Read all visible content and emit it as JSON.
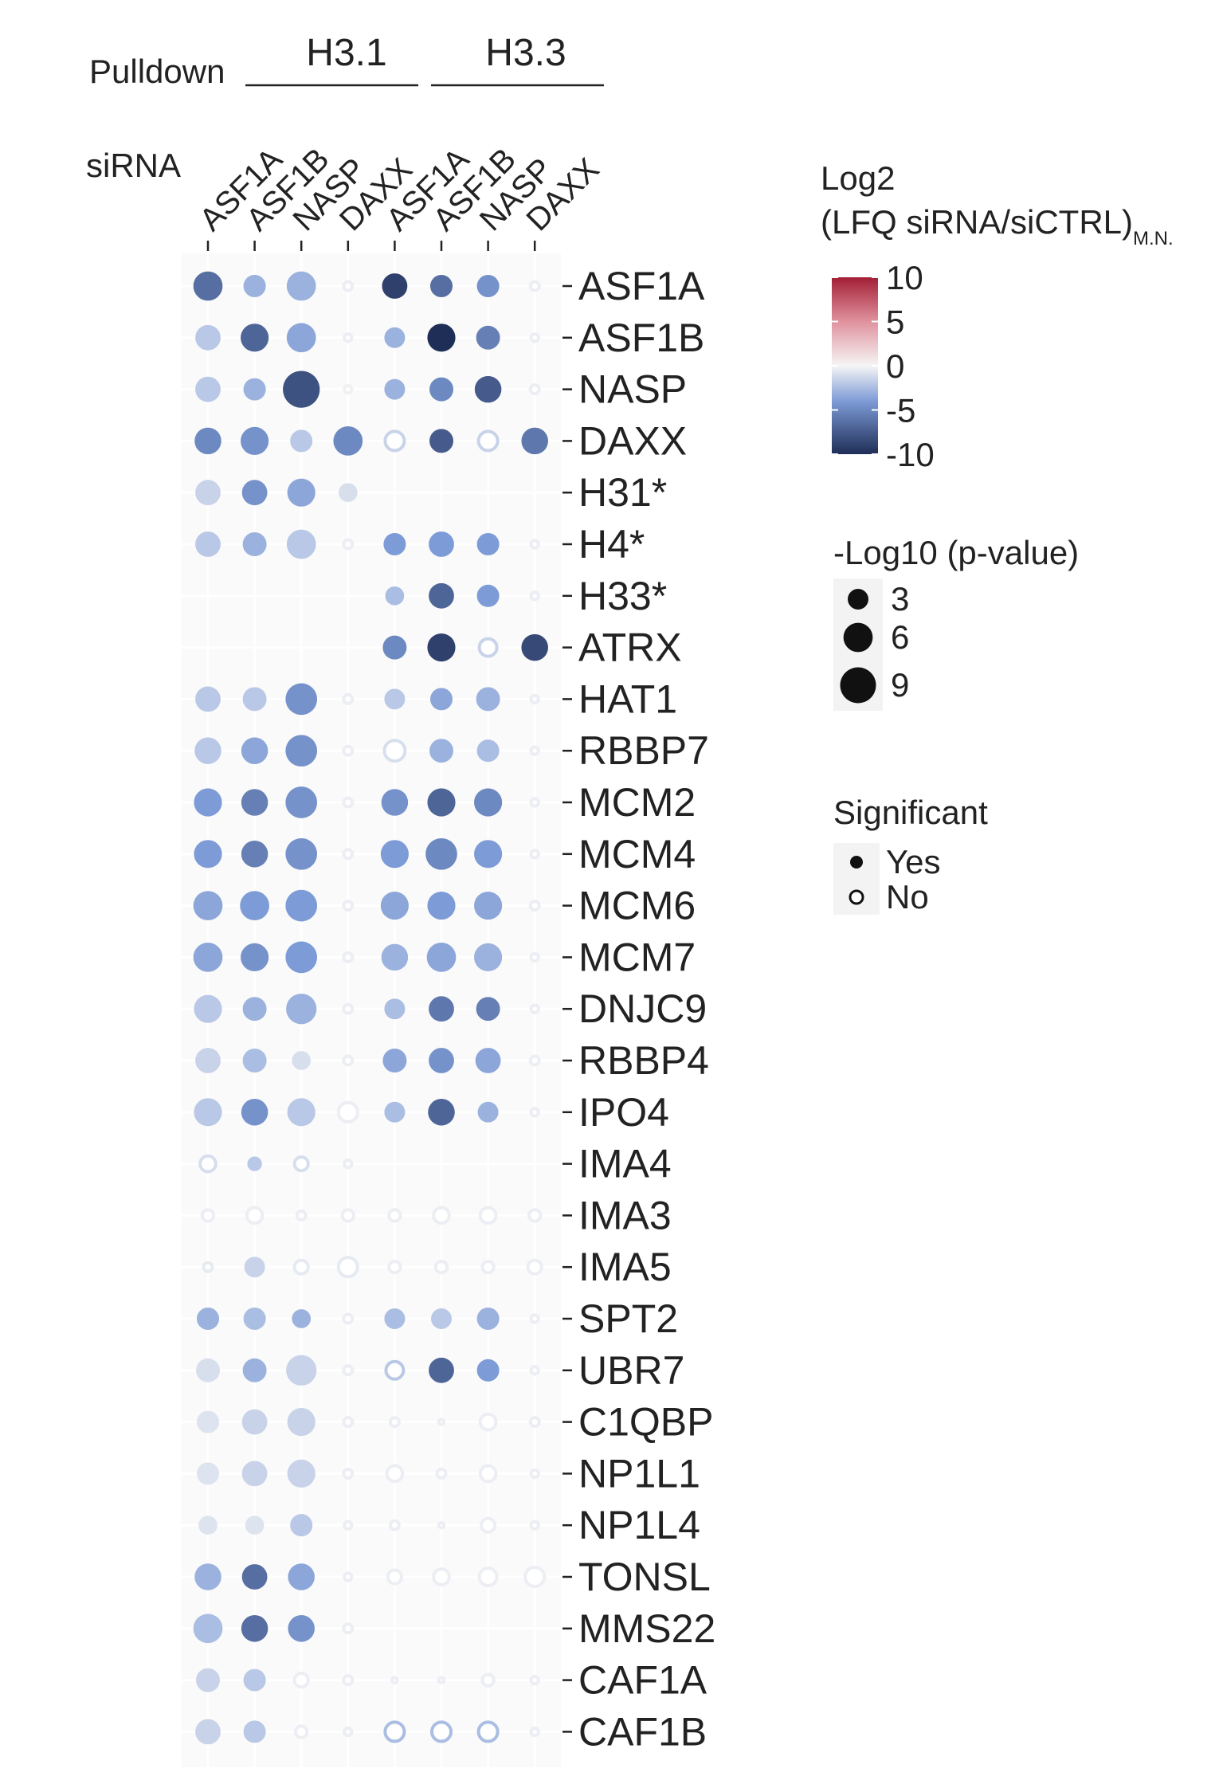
{
  "chart_data": {
    "type": "dotplot",
    "pulldown_label": "Pulldown",
    "sirna_label": "siRNA",
    "pulldown_groups": [
      {
        "name": "H3.1",
        "columns": [
          "ASF1A",
          "ASF1B",
          "NASP",
          "DAXX"
        ]
      },
      {
        "name": "H3.3",
        "columns": [
          "ASF1A",
          "ASF1B",
          "NASP",
          "DAXX"
        ]
      }
    ],
    "columns": [
      "ASF1A",
      "ASF1B",
      "NASP",
      "DAXX",
      "ASF1A",
      "ASF1B",
      "NASP",
      "DAXX"
    ],
    "rows": [
      "ASF1A",
      "ASF1B",
      "NASP",
      "DAXX",
      "H31*",
      "H4*",
      "H33*",
      "ATRX",
      "HAT1",
      "RBBP7",
      "MCM2",
      "MCM4",
      "MCM6",
      "MCM7",
      "DNJC9",
      "RBBP4",
      "IPO4",
      "IMA4",
      "IMA3",
      "IMA5",
      "SPT2",
      "UBR7",
      "C1QBP",
      "NP1L1",
      "NP1L4",
      "TONSL",
      "MMS22",
      "CAF1A",
      "CAF1B"
    ],
    "log2_ratio": [
      [
        -6.5,
        -3,
        -3,
        -0.3,
        -9,
        -6.5,
        -4.5,
        -0.3
      ],
      [
        -2,
        -7,
        -3.5,
        -0.3,
        -3,
        -10,
        -5.5,
        -0.3
      ],
      [
        -2,
        -3,
        -8,
        -0.2,
        -3,
        -5,
        -7.5,
        -0.3
      ],
      [
        -5,
        -4.5,
        -2,
        -5,
        -1.5,
        -7.5,
        -1.5,
        -6
      ],
      [
        -1.5,
        -4.5,
        -3.5,
        -1,
        null,
        null,
        null,
        null
      ],
      [
        -2,
        -3,
        -2,
        -0.3,
        -4,
        -4,
        -4,
        -0.3
      ],
      [
        null,
        null,
        null,
        null,
        -2.5,
        -7,
        -4,
        -0.3
      ],
      [
        null,
        null,
        null,
        null,
        -5,
        -9,
        -1.5,
        -8.5
      ],
      [
        -2,
        -2,
        -4.5,
        -0.3,
        -2,
        -3.5,
        -3,
        -0.3
      ],
      [
        -2,
        -3.5,
        -4.5,
        -0.3,
        -1,
        -3,
        -2.5,
        -0.3
      ],
      [
        -4,
        -5.5,
        -4.5,
        -0.3,
        -4.5,
        -7,
        -5,
        -0.3
      ],
      [
        -4,
        -5.5,
        -4.5,
        -0.3,
        -4,
        -5,
        -4,
        -0.3
      ],
      [
        -3.5,
        -4,
        -4,
        -0.3,
        -3.5,
        -4,
        -3.5,
        -0.3
      ],
      [
        -3.5,
        -4.5,
        -4,
        -0.3,
        -3,
        -3.5,
        -3,
        -0.3
      ],
      [
        -2,
        -3,
        -3,
        -0.3,
        -2.5,
        -6,
        -5.5,
        -0.3
      ],
      [
        -1.5,
        -2.5,
        -1,
        -0.3,
        -3.5,
        -4.5,
        -3.5,
        -0.3
      ],
      [
        -2,
        -4.5,
        -2,
        -0.3,
        -2.5,
        -7,
        -3,
        -0.3
      ],
      [
        -1,
        -2,
        -1,
        -0.3,
        null,
        null,
        null,
        null
      ],
      [
        -0.3,
        -0.3,
        -0.3,
        -0.3,
        -0.3,
        -0.3,
        -0.3,
        -0.3
      ],
      [
        -0.5,
        -1.5,
        -0.5,
        -0.5,
        -0.3,
        -0.3,
        -0.3,
        -0.3
      ],
      [
        -3,
        -2.5,
        -3,
        -0.3,
        -2.5,
        -2,
        -3,
        -0.3
      ],
      [
        -1,
        -3,
        -1.5,
        -0.3,
        -2,
        -7,
        -4,
        -0.3
      ],
      [
        -0.8,
        -1.5,
        -1.5,
        -0.3,
        -0.3,
        -0.3,
        -0.3,
        -0.3
      ],
      [
        -0.8,
        -1.5,
        -1.5,
        -0.3,
        -0.3,
        -0.3,
        -0.3,
        -0.3
      ],
      [
        -0.8,
        -0.8,
        -2,
        -0.3,
        -0.3,
        -0.3,
        -0.3,
        -0.3
      ],
      [
        -3,
        -6.5,
        -3.5,
        -0.3,
        -0.3,
        -0.3,
        -0.3,
        -0.3
      ],
      [
        -2.5,
        -6.5,
        -4.5,
        -0.3,
        null,
        null,
        null,
        null
      ],
      [
        -1.5,
        -2,
        -0.3,
        -0.3,
        -0.3,
        -0.3,
        -0.3,
        -0.3
      ],
      [
        -1.5,
        -2,
        -0.3,
        -0.3,
        -2.5,
        -2.5,
        -2.5,
        -0.3
      ]
    ],
    "neg_log10_pvalue": [
      [
        6,
        3.5,
        6,
        1,
        4.5,
        3.5,
        3.5,
        1
      ],
      [
        4.5,
        5.5,
        6,
        0.8,
        3,
        5.5,
        4,
        0.8
      ],
      [
        4.5,
        3.5,
        9.5,
        0.8,
        3,
        4,
        5,
        1
      ],
      [
        5,
        5.5,
        3.5,
        6,
        3.5,
        4,
        3.5,
        5
      ],
      [
        4.5,
        4.5,
        5.5,
        2.5,
        null,
        null,
        null,
        null
      ],
      [
        4.5,
        4,
        6,
        1,
        3.5,
        4.5,
        3.5,
        0.8
      ],
      [
        null,
        null,
        null,
        null,
        2.5,
        4.5,
        3.5,
        0.8
      ],
      [
        null,
        null,
        null,
        null,
        4,
        5.5,
        3,
        5
      ],
      [
        4.5,
        4,
        7,
        1,
        3,
        3.5,
        4,
        0.8
      ],
      [
        5,
        5,
        7,
        1,
        4,
        4,
        3.5,
        0.8
      ],
      [
        5.5,
        5,
        7,
        1,
        5,
        5.5,
        5.5,
        0.8
      ],
      [
        5.5,
        5,
        7,
        1,
        5.5,
        7,
        5.5,
        0.8
      ],
      [
        6,
        6,
        7,
        1,
        5.5,
        5.5,
        5.5,
        1
      ],
      [
        6,
        5.5,
        7,
        1,
        5,
        6,
        5.5,
        0.8
      ],
      [
        5.5,
        4,
        6.5,
        1,
        3,
        4.5,
        4,
        0.8
      ],
      [
        4.5,
        4,
        2.5,
        1,
        4,
        4.5,
        4.5,
        1
      ],
      [
        5.5,
        5,
        5.5,
        3.5,
        3,
        5,
        3,
        0.8
      ],
      [
        2.5,
        1.5,
        2,
        0.8,
        null,
        null,
        null,
        null
      ],
      [
        1.5,
        2.5,
        1,
        1.5,
        1.5,
        2.5,
        2.5,
        1.5
      ],
      [
        1,
        3,
        2,
        3.5,
        1.5,
        1.5,
        1.5,
        2
      ],
      [
        3.5,
        3.5,
        2.5,
        1,
        3,
        3,
        3.5,
        0.8
      ],
      [
        4,
        4,
        6.5,
        1,
        3,
        4.5,
        3.5,
        0.8
      ],
      [
        3.5,
        4.5,
        5.5,
        1,
        1,
        0.5,
        2.5,
        1
      ],
      [
        3.5,
        4.5,
        5.5,
        1,
        2.5,
        1,
        2.5,
        0.8
      ],
      [
        2.5,
        2.5,
        3.5,
        0.8,
        1,
        0.5,
        2,
        0.8
      ],
      [
        5,
        4.5,
        5,
        0.8,
        2,
        2.5,
        3,
        3.5
      ],
      [
        6,
        5,
        5,
        1,
        null,
        null,
        null,
        null
      ],
      [
        4,
        3.5,
        2,
        1,
        0.5,
        0.5,
        1.5,
        0.8
      ],
      [
        4.5,
        3.5,
        1.5,
        0.8,
        3.5,
        3.5,
        3.5,
        0.8
      ]
    ],
    "significant": [
      [
        true,
        true,
        true,
        false,
        true,
        true,
        true,
        false
      ],
      [
        true,
        true,
        true,
        false,
        true,
        true,
        true,
        false
      ],
      [
        true,
        true,
        true,
        false,
        true,
        true,
        true,
        false
      ],
      [
        true,
        true,
        true,
        true,
        false,
        true,
        false,
        true
      ],
      [
        true,
        true,
        true,
        true,
        null,
        null,
        null,
        null
      ],
      [
        true,
        true,
        true,
        false,
        true,
        true,
        true,
        false
      ],
      [
        null,
        null,
        null,
        null,
        true,
        true,
        true,
        false
      ],
      [
        null,
        null,
        null,
        null,
        true,
        true,
        false,
        true
      ],
      [
        true,
        true,
        true,
        false,
        true,
        true,
        true,
        false
      ],
      [
        true,
        true,
        true,
        false,
        false,
        true,
        true,
        false
      ],
      [
        true,
        true,
        true,
        false,
        true,
        true,
        true,
        false
      ],
      [
        true,
        true,
        true,
        false,
        true,
        true,
        true,
        false
      ],
      [
        true,
        true,
        true,
        false,
        true,
        true,
        true,
        false
      ],
      [
        true,
        true,
        true,
        false,
        true,
        true,
        true,
        false
      ],
      [
        true,
        true,
        true,
        false,
        true,
        true,
        true,
        false
      ],
      [
        true,
        true,
        true,
        false,
        true,
        true,
        true,
        false
      ],
      [
        true,
        true,
        true,
        false,
        true,
        true,
        true,
        false
      ],
      [
        false,
        true,
        false,
        false,
        null,
        null,
        null,
        null
      ],
      [
        false,
        false,
        false,
        false,
        false,
        false,
        false,
        false
      ],
      [
        false,
        true,
        false,
        false,
        false,
        false,
        false,
        false
      ],
      [
        true,
        true,
        true,
        false,
        true,
        true,
        true,
        false
      ],
      [
        true,
        true,
        true,
        false,
        false,
        true,
        true,
        false
      ],
      [
        true,
        true,
        true,
        false,
        false,
        false,
        false,
        false
      ],
      [
        true,
        true,
        true,
        false,
        false,
        false,
        false,
        false
      ],
      [
        true,
        true,
        true,
        false,
        false,
        false,
        false,
        false
      ],
      [
        true,
        true,
        true,
        false,
        false,
        false,
        false,
        false
      ],
      [
        true,
        true,
        true,
        false,
        null,
        null,
        null,
        null
      ],
      [
        true,
        true,
        false,
        false,
        false,
        false,
        false,
        false
      ],
      [
        true,
        true,
        false,
        false,
        false,
        false,
        false,
        false
      ]
    ],
    "color_legend": {
      "title_line1": "Log2",
      "title_line2": "(LFQ siRNA/siCTRL)",
      "title_subscript": "M.N.",
      "ticks": [
        10,
        5,
        0,
        -5,
        -10
      ],
      "tick_labels": [
        "10",
        "5",
        "0",
        "-5",
        "-10"
      ],
      "range": [
        -10,
        10
      ],
      "low_color": "#1f2e57",
      "mid_color": "#f5f5f5",
      "high_color": "#a31f36"
    },
    "size_legend": {
      "title": "-Log10 (p-value)",
      "values": [
        3,
        6,
        9
      ],
      "labels": [
        "3",
        "6",
        "9"
      ]
    },
    "significance_legend": {
      "title": "Significant",
      "items": [
        {
          "label": "Yes",
          "filled": true
        },
        {
          "label": "No",
          "filled": false
        }
      ]
    }
  }
}
